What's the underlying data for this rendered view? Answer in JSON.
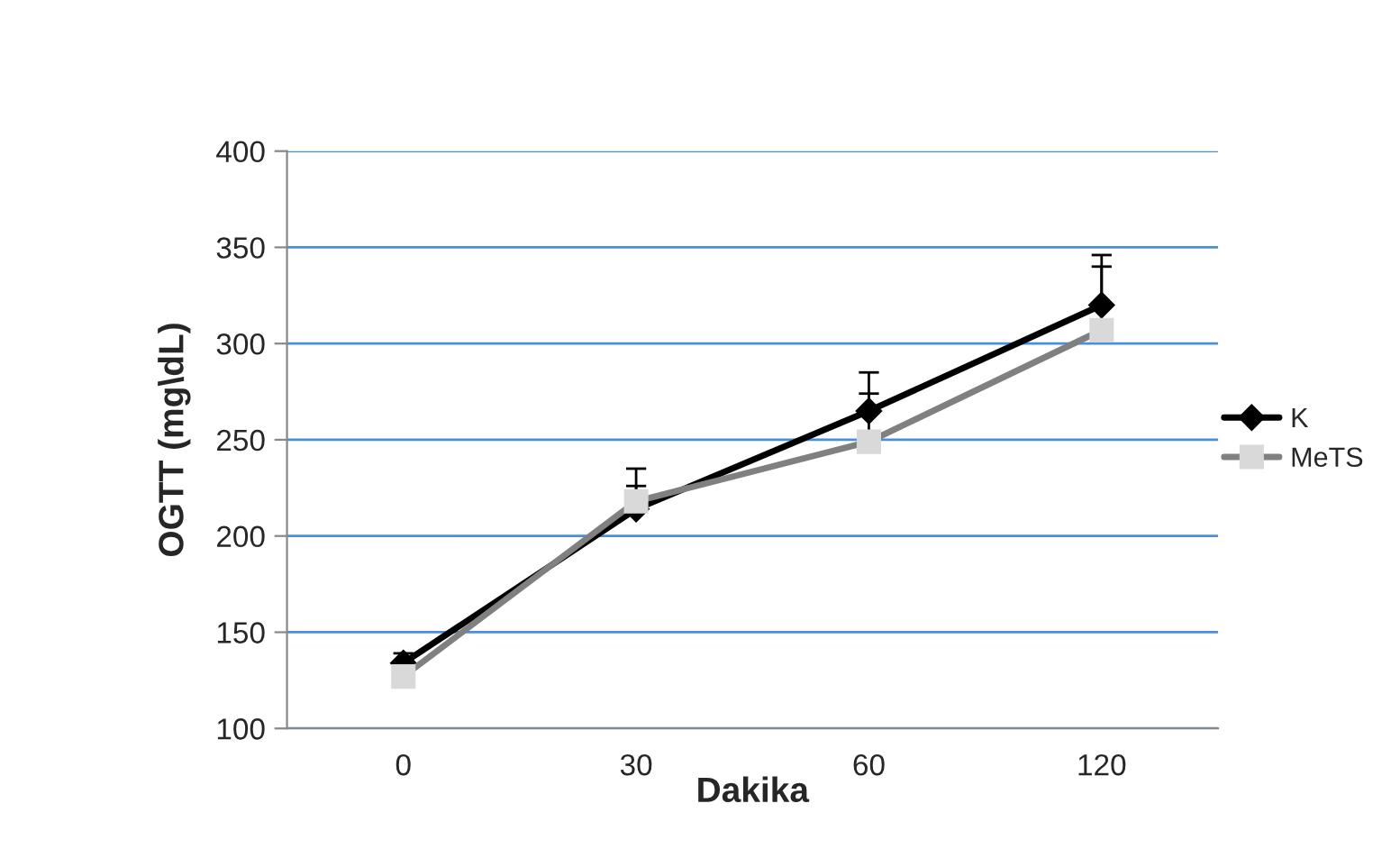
{
  "chart_data": {
    "type": "line",
    "xlabel": "Dakika",
    "ylabel": "OGTT (mg\\dL)",
    "categories": [
      "0",
      "30",
      "60",
      "120"
    ],
    "series": [
      {
        "name": "K",
        "color": "#000000",
        "marker": "diamond",
        "values": [
          134,
          214,
          265,
          320
        ],
        "errors": [
          [
            134,
            139
          ],
          [
            214,
            235
          ],
          [
            265,
            285
          ],
          [
            320,
            346
          ]
        ]
      },
      {
        "name": "MeTS",
        "color": "#808080",
        "marker": "square",
        "values": [
          127,
          218,
          249,
          307
        ],
        "errors": [
          null,
          [
            218,
            226
          ],
          [
            249,
            274
          ],
          [
            307,
            340
          ]
        ]
      }
    ],
    "ylim": [
      100,
      400
    ],
    "yticks": [
      100,
      150,
      200,
      250,
      300,
      350,
      400
    ],
    "grid": "y",
    "legend": "right"
  }
}
